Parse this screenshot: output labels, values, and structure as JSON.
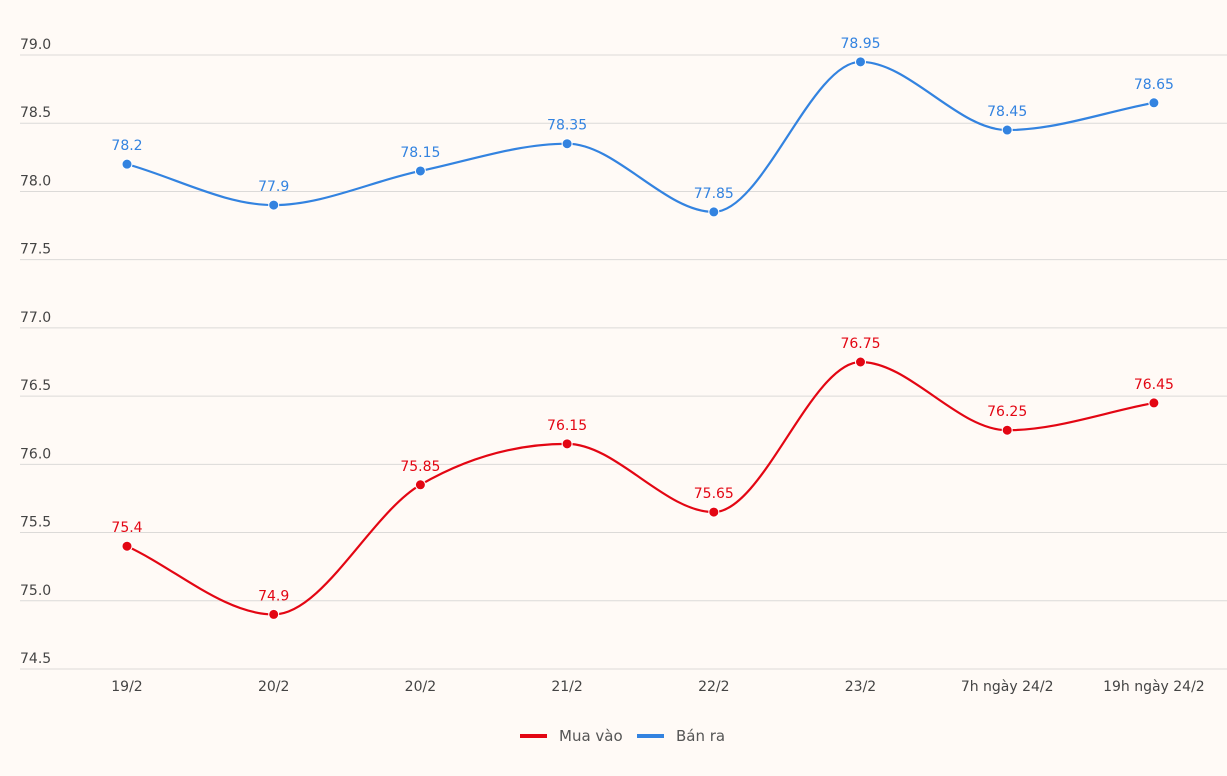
{
  "chart_data": {
    "type": "line",
    "title": "",
    "xlabel": "",
    "ylabel": "",
    "ylim": [
      74.5,
      79.0
    ],
    "yticks": [
      "74.5",
      "75.0",
      "75.5",
      "76.0",
      "76.5",
      "77.0",
      "77.5",
      "78.0",
      "78.5",
      "79.0"
    ],
    "grid": true,
    "legend_position": "bottom-center",
    "categories": [
      "19/2",
      "20/2",
      "20/2",
      "21/2",
      "22/2",
      "23/2",
      "7h ngày 24/2",
      "19h ngày 24/2"
    ],
    "series": [
      {
        "name": "Mua vào",
        "color": "#e30613",
        "values": [
          75.4,
          74.9,
          75.85,
          76.15,
          75.65,
          76.75,
          76.25,
          76.45
        ],
        "labels": [
          "75.4",
          "74.9",
          "75.85",
          "76.15",
          "75.65",
          "76.75",
          "76.25",
          "76.45"
        ]
      },
      {
        "name": "Bán ra",
        "color": "#3383e0",
        "values": [
          78.2,
          77.9,
          78.15,
          78.35,
          77.85,
          78.95,
          78.45,
          78.65
        ],
        "labels": [
          "78.2",
          "77.9",
          "78.15",
          "78.35",
          "77.85",
          "78.95",
          "78.45",
          "78.65"
        ]
      }
    ]
  }
}
